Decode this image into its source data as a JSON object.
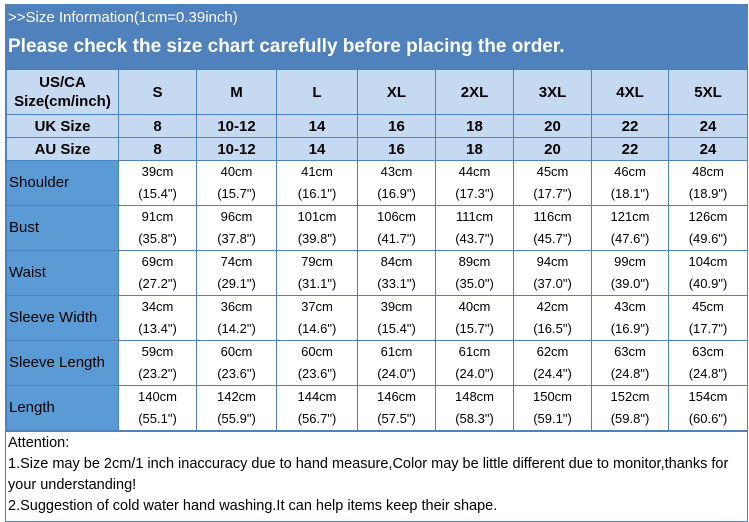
{
  "banner": {
    "line1": ">>Size Information(1cm=0.39inch)",
    "line2": "Please check the size chart carefully before placing the order."
  },
  "colors": {
    "banner": "#4f81bd",
    "header_cells": "#c5d9f1",
    "label_cells": "#5b9bd5",
    "border": "#4f81bd"
  },
  "table": {
    "header": [
      "US/CA Size(cm/inch)",
      "S",
      "M",
      "L",
      "XL",
      "2XL",
      "3XL",
      "4XL",
      "5XL"
    ],
    "uk": [
      "UK Size",
      "8",
      "10-12",
      "14",
      "16",
      "18",
      "20",
      "22",
      "24"
    ],
    "au": [
      "AU Size",
      "8",
      "10-12",
      "14",
      "16",
      "18",
      "20",
      "22",
      "24"
    ],
    "rows": [
      {
        "label": "Shoulder",
        "cm": [
          "39cm",
          "40cm",
          "41cm",
          "43cm",
          "44cm",
          "45cm",
          "46cm",
          "48cm"
        ],
        "inch": [
          "(15.4\")",
          "(15.7\")",
          "(16.1\")",
          "(16.9\")",
          "(17.3\")",
          "(17.7\")",
          "(18.1\")",
          "(18.9\")"
        ]
      },
      {
        "label": "Bust",
        "cm": [
          "91cm",
          "96cm",
          "101cm",
          "106cm",
          "111cm",
          "116cm",
          "121cm",
          "126cm"
        ],
        "inch": [
          "(35.8\")",
          "(37.8\")",
          "(39.8\")",
          "(41.7\")",
          "(43.7\")",
          "(45.7\")",
          "(47.6\")",
          "(49.6\")"
        ]
      },
      {
        "label": "Waist",
        "cm": [
          "69cm",
          "74cm",
          "79cm",
          "84cm",
          "89cm",
          "94cm",
          "99cm",
          "104cm"
        ],
        "inch": [
          "(27.2\")",
          "(29.1\")",
          "(31.1\")",
          "(33.1\")",
          "(35.0\")",
          "(37.0\")",
          "(39.0\")",
          "(40.9\")"
        ]
      },
      {
        "label": "Sleeve Width",
        "cm": [
          "34cm",
          "36cm",
          "37cm",
          "39cm",
          "40cm",
          "42cm",
          "43cm",
          "45cm"
        ],
        "inch": [
          "(13.4\")",
          "(14.2\")",
          "(14.6\")",
          "(15.4\")",
          "(15.7\")",
          "(16.5\")",
          "(16.9\")",
          "(17.7\")"
        ]
      },
      {
        "label": "Sleeve Length",
        "cm": [
          "59cm",
          "60cm",
          "60cm",
          "61cm",
          "61cm",
          "62cm",
          "63cm",
          "63cm"
        ],
        "inch": [
          "(23.2\")",
          "(23.6\")",
          "(23.6\")",
          "(24.0\")",
          "(24.0\")",
          "(24.4\")",
          "(24.8\")",
          "(24.8\")"
        ]
      },
      {
        "label": "Length",
        "cm": [
          "140cm",
          "142cm",
          "144cm",
          "146cm",
          "148cm",
          "150cm",
          "152cm",
          "154cm"
        ],
        "inch": [
          "(55.1\")",
          "(55.9\")",
          "(56.7\")",
          "(57.5\")",
          "(58.3\")",
          "(59.1\")",
          "(59.8\")",
          "(60.6\")"
        ]
      }
    ]
  },
  "notes": {
    "title": "Attention:",
    "items": [
      "1.Size may be 2cm/1 inch inaccuracy due to hand measure,Color may be little different due to monitor,thanks for your understanding!",
      "2.Suggestion of cold water hand washing.It can help items keep their shape."
    ]
  }
}
